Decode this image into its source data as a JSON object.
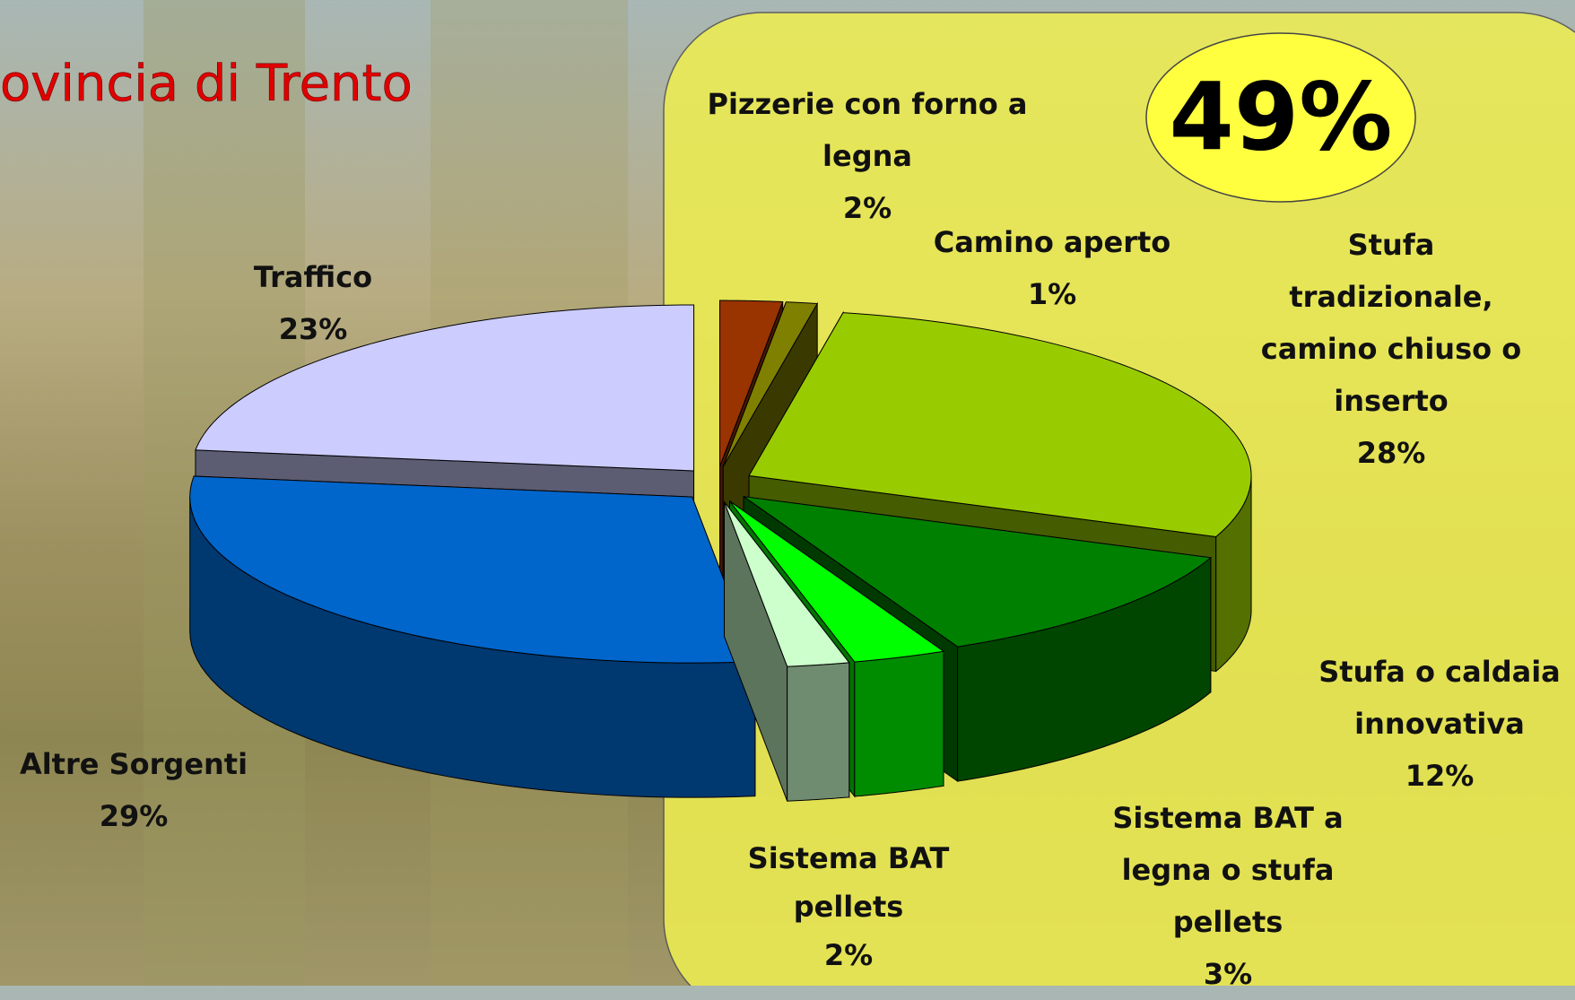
{
  "chart_data": {
    "type": "pie3d",
    "title": "ovincia di Trento",
    "highlight": "49%",
    "categories": [
      "Pizzerie con forno a legna",
      "Camino aperto",
      "Stufa tradizionale, camino chiuso o inserto",
      "Stufa o caldaia innovativa",
      "Sistema BAT a legna o stufa pellets",
      "Sistema BAT pellets",
      "Altre Sorgenti",
      "Traffico"
    ],
    "values": [
      2,
      1,
      28,
      12,
      3,
      2,
      29,
      23
    ],
    "value_labels": [
      "2%",
      "1%",
      "28%",
      "12%",
      "3%",
      "2%",
      "29%",
      "23%"
    ],
    "colors": [
      "#993300",
      "#808000",
      "#99cc00",
      "#008000",
      "#00ff00",
      "#ccffcc",
      "#0066cc",
      "#ccccff"
    ]
  }
}
